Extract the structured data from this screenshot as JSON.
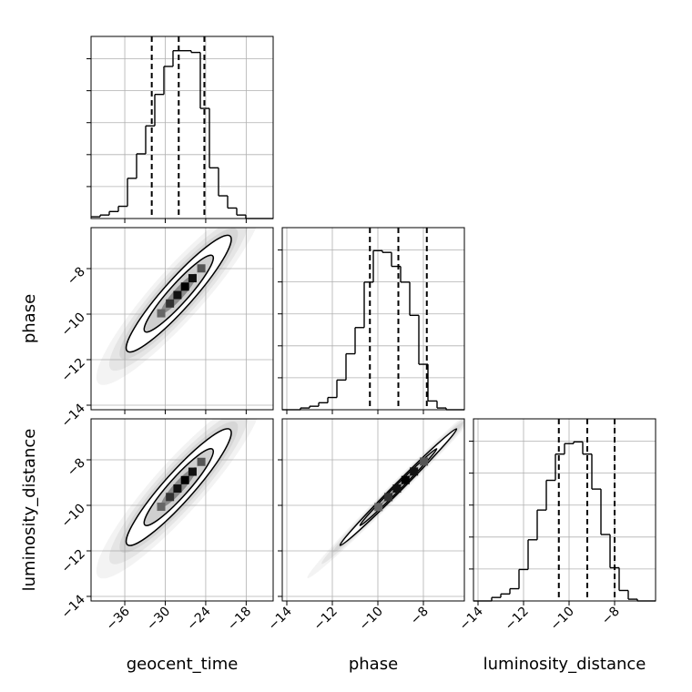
{
  "chart_data": {
    "type": "corner",
    "parameters": [
      "geocent_time",
      "phase",
      "luminosity_distance"
    ],
    "ranges": {
      "geocent_time": [
        -41,
        -14
      ],
      "phase": [
        -14.2,
        -6.2
      ],
      "luminosity_distance": [
        -14.2,
        -6.2
      ]
    },
    "ticks": {
      "geocent_time": [
        -36,
        -30,
        -24,
        -18
      ],
      "phase": [
        -14,
        -12,
        -10,
        -8
      ],
      "luminosity_distance": [
        -14,
        -12,
        -10,
        -8
      ]
    },
    "tick_labels": {
      "geocent_time": [
        "−36",
        "−30",
        "−24",
        "−18"
      ],
      "phase": [
        "−14",
        "−12",
        "−10",
        "−8"
      ],
      "luminosity_distance": [
        "−14",
        "−12",
        "−10",
        "−8"
      ]
    },
    "quantiles": {
      "geocent_time": [
        -32.0,
        -28.0,
        -24.2
      ],
      "phase": [
        -10.35,
        -9.1,
        -7.85
      ],
      "luminosity_distance": [
        -10.45,
        -9.2,
        -8.0
      ]
    },
    "histograms": [
      {
        "param": "geocent_time",
        "lo": -41,
        "hi": -14,
        "nbins": 20,
        "counts": [
          0.01,
          0.02,
          0.04,
          0.07,
          0.23,
          0.37,
          0.53,
          0.71,
          0.87,
          0.96,
          0.96,
          0.95,
          0.63,
          0.29,
          0.13,
          0.06,
          0.02,
          0.0,
          0.0,
          0.0
        ]
      },
      {
        "param": "phase",
        "lo": -14.2,
        "hi": -6.2,
        "nbins": 20,
        "counts": [
          0.0,
          0.0,
          0.01,
          0.02,
          0.04,
          0.07,
          0.17,
          0.32,
          0.47,
          0.73,
          0.91,
          0.9,
          0.82,
          0.73,
          0.54,
          0.26,
          0.05,
          0.01,
          0.0,
          0.0
        ]
      },
      {
        "param": "luminosity_distance",
        "lo": -14.2,
        "hi": -6.2,
        "nbins": 20,
        "counts": [
          0.0,
          0.0,
          0.02,
          0.04,
          0.07,
          0.18,
          0.35,
          0.52,
          0.69,
          0.84,
          0.9,
          0.91,
          0.84,
          0.64,
          0.38,
          0.19,
          0.06,
          0.01,
          0.0,
          0.0
        ]
      }
    ],
    "scatter_panels": [
      {
        "x": "geocent_time",
        "y": "phase",
        "center": [
          -28.0,
          -9.1
        ],
        "sx": 3.8,
        "sy": 1.25,
        "rho": 0.93,
        "points": [
          [
            -29.4,
            -9.66
          ],
          [
            -27.84,
            -8.86
          ],
          [
            -26.8,
            -8.64
          ],
          [
            -25.89,
            -8.26
          ],
          [
            -29.05,
            -9.41
          ],
          [
            -28.69,
            -9.25
          ],
          [
            -29.03,
            -9.34
          ],
          [
            -27.8,
            -9.05
          ],
          [
            -24.61,
            -8.07
          ],
          [
            -31.98,
            -10.36
          ],
          [
            -27.73,
            -9.31
          ],
          [
            -26.83,
            -8.85
          ],
          [
            -31.61,
            -10.43
          ],
          [
            -30.97,
            -10.06
          ],
          [
            -27.41,
            -8.93
          ],
          [
            -29.21,
            -9.66
          ],
          [
            -26.86,
            -8.93
          ],
          [
            -33.9,
            -10.77
          ],
          [
            -29.03,
            -9.64
          ],
          [
            -30.19,
            -9.68
          ],
          [
            -30.45,
            -9.86
          ],
          [
            -26.04,
            -8.55
          ],
          [
            -28.17,
            -9.24
          ],
          [
            -31.23,
            -10.02
          ],
          [
            -34.34,
            -10.91
          ],
          [
            -29.13,
            -9.62
          ],
          [
            -25.32,
            -8.51
          ],
          [
            -33.94,
            -10.89
          ],
          [
            -22.7,
            -7.47
          ],
          [
            -27.67,
            -9.07
          ]
        ]
      },
      {
        "x": "geocent_time",
        "y": "luminosity_distance",
        "center": [
          -28.0,
          -9.2
        ],
        "sx": 3.8,
        "sy": 1.25,
        "rho": 0.93,
        "points": [
          [
            -30.5,
            -10.05
          ],
          [
            -25.58,
            -8.38
          ],
          [
            -32.64,
            -10.37
          ],
          [
            -25.71,
            -8.37
          ],
          [
            -26.1,
            -8.53
          ],
          [
            -27.31,
            -9.14
          ],
          [
            -29.82,
            -9.62
          ],
          [
            -34.23,
            -11.09
          ],
          [
            -29.81,
            -9.54
          ],
          [
            -23.33,
            -7.77
          ],
          [
            -23.41,
            -7.95
          ],
          [
            -30.8,
            -10.08
          ],
          [
            -28.5,
            -9.25
          ],
          [
            -26.43,
            -8.68
          ],
          [
            -27.13,
            -9.09
          ],
          [
            -30.37,
            -10.05
          ],
          [
            -29.23,
            -9.3
          ],
          [
            -25.69,
            -8.56
          ],
          [
            -30.3,
            -9.93
          ],
          [
            -29.59,
            -9.77
          ],
          [
            -31.91,
            -10.45
          ],
          [
            -29.67,
            -9.83
          ],
          [
            -27.62,
            -9.1
          ],
          [
            -29.42,
            -9.61
          ],
          [
            -31.22,
            -10.28
          ],
          [
            -26.62,
            -8.74
          ],
          [
            -29.87,
            -9.71
          ],
          [
            -31.63,
            -10.33
          ],
          [
            -32.47,
            -10.8
          ],
          [
            -29.29,
            -9.61
          ]
        ]
      },
      {
        "x": "phase",
        "y": "luminosity_distance",
        "center": [
          -9.1,
          -9.2
        ],
        "sx": 1.25,
        "sy": 1.25,
        "rho": 0.995,
        "points": [
          [
            -9.44,
            -9.53
          ],
          [
            -9.85,
            -9.99
          ],
          [
            -8.2,
            -8.26
          ],
          [
            -9.5,
            -9.63
          ],
          [
            -11.63,
            -11.72
          ],
          [
            -10.18,
            -10.27
          ],
          [
            -8.18,
            -8.28
          ],
          [
            -8.96,
            -9.03
          ],
          [
            -8.49,
            -8.59
          ],
          [
            -9.58,
            -9.66
          ],
          [
            -10.29,
            -10.39
          ],
          [
            -10.36,
            -10.46
          ],
          [
            -9.41,
            -9.52
          ],
          [
            -8.17,
            -8.29
          ],
          [
            -7.06,
            -7.17
          ],
          [
            -9.48,
            -9.57
          ],
          [
            -9.55,
            -9.63
          ],
          [
            -9.56,
            -9.67
          ],
          [
            -9.48,
            -9.56
          ],
          [
            -9.97,
            -10.07
          ],
          [
            -9.5,
            -9.59
          ],
          [
            -10.21,
            -10.31
          ],
          [
            -7.64,
            -7.75
          ],
          [
            -9.08,
            -9.19
          ],
          [
            -9.73,
            -9.82
          ],
          [
            -8.27,
            -8.36
          ],
          [
            -10.95,
            -11.06
          ],
          [
            -7.72,
            -7.82
          ],
          [
            -10.27,
            -10.35
          ],
          [
            -8.84,
            -8.95
          ]
        ]
      }
    ]
  }
}
